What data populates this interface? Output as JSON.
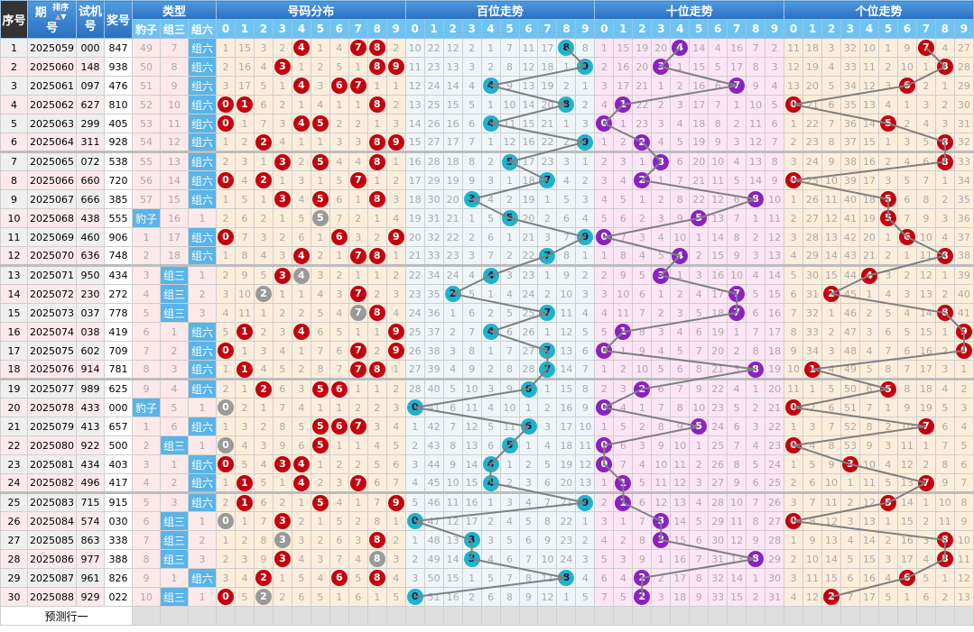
{
  "header": {
    "seq": "序号",
    "issue_top": "期",
    "issue_bottom": "号",
    "sort": "排序",
    "test": "试机号",
    "win": "奖号",
    "type": "类型",
    "type_cols": [
      "豹子",
      "组三",
      "组六"
    ],
    "dist": "号码分布",
    "hundreds": "百位走势",
    "tens": "十位走势",
    "units": "个位走势",
    "digits": [
      "0",
      "1",
      "2",
      "3",
      "4",
      "5",
      "6",
      "7",
      "8",
      "9"
    ]
  },
  "rows": [
    {
      "seq": 1,
      "issue": "2025059",
      "test": "000",
      "win": "847"
    },
    {
      "seq": 2,
      "issue": "2025060",
      "test": "148",
      "win": "938"
    },
    {
      "seq": 3,
      "issue": "2025061",
      "test": "097",
      "win": "476"
    },
    {
      "seq": 4,
      "issue": "2025062",
      "test": "627",
      "win": "810"
    },
    {
      "seq": 5,
      "issue": "2025063",
      "test": "299",
      "win": "405"
    },
    {
      "seq": 6,
      "issue": "2025064",
      "test": "311",
      "win": "928"
    },
    {
      "seq": 7,
      "issue": "2025065",
      "test": "072",
      "win": "538"
    },
    {
      "seq": 8,
      "issue": "2025066",
      "test": "660",
      "win": "720"
    },
    {
      "seq": 9,
      "issue": "2025067",
      "test": "666",
      "win": "385"
    },
    {
      "seq": 10,
      "issue": "2025068",
      "test": "438",
      "win": "555"
    },
    {
      "seq": 11,
      "issue": "2025069",
      "test": "460",
      "win": "906"
    },
    {
      "seq": 12,
      "issue": "2025070",
      "test": "636",
      "win": "748"
    },
    {
      "seq": 13,
      "issue": "2025071",
      "test": "950",
      "win": "434"
    },
    {
      "seq": 14,
      "issue": "2025072",
      "test": "230",
      "win": "272"
    },
    {
      "seq": 15,
      "issue": "2025073",
      "test": "037",
      "win": "778"
    },
    {
      "seq": 16,
      "issue": "2025074",
      "test": "038",
      "win": "419"
    },
    {
      "seq": 17,
      "issue": "2025075",
      "test": "602",
      "win": "709"
    },
    {
      "seq": 18,
      "issue": "2025076",
      "test": "914",
      "win": "781"
    },
    {
      "seq": 19,
      "issue": "2025077",
      "test": "989",
      "win": "625"
    },
    {
      "seq": 20,
      "issue": "2025078",
      "test": "433",
      "win": "000"
    },
    {
      "seq": 21,
      "issue": "2025079",
      "test": "413",
      "win": "657"
    },
    {
      "seq": 22,
      "issue": "2025080",
      "test": "922",
      "win": "500"
    },
    {
      "seq": 23,
      "issue": "2025081",
      "test": "434",
      "win": "403"
    },
    {
      "seq": 24,
      "issue": "2025082",
      "test": "496",
      "win": "417"
    },
    {
      "seq": 25,
      "issue": "2025083",
      "test": "715",
      "win": "915"
    },
    {
      "seq": 26,
      "issue": "2025084",
      "test": "574",
      "win": "030"
    },
    {
      "seq": 27,
      "issue": "2025085",
      "test": "863",
      "win": "338"
    },
    {
      "seq": 28,
      "issue": "2025086",
      "test": "977",
      "win": "388"
    },
    {
      "seq": 29,
      "issue": "2025087",
      "test": "961",
      "win": "826"
    },
    {
      "seq": 30,
      "issue": "2025088",
      "test": "929",
      "win": "022"
    }
  ],
  "first_row_omissions": {
    "type": [
      49,
      7,
      null
    ],
    "dist": [
      1,
      15,
      3,
      2,
      null,
      1,
      4,
      null,
      null,
      2
    ],
    "hundreds": [
      10,
      22,
      12,
      2,
      1,
      7,
      11,
      17,
      null,
      8
    ],
    "tens": [
      1,
      15,
      19,
      20,
      null,
      14,
      4,
      16,
      7,
      2
    ],
    "units": [
      11,
      18,
      3,
      32,
      10,
      1,
      9,
      null,
      4,
      27
    ]
  },
  "footer": {
    "label": "预测行一"
  },
  "colors": {
    "header_blue": "#2a6fbf",
    "subheader_blue": "#6ec3f0",
    "hit_red": "#c4000e",
    "repeat_gray": "#9a9a9a",
    "hundreds_ball": "#1fb3cc",
    "tens_ball": "#8a22c2",
    "units_ball": "#c4000e",
    "type_hit": "#5ab4e8",
    "trend_line": "#808080"
  }
}
